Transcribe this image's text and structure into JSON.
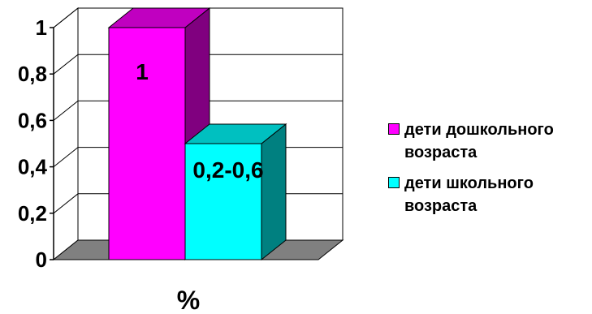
{
  "chart_data": {
    "type": "bar",
    "style": "3d",
    "categories": [
      "%"
    ],
    "xlabel": "%",
    "ylim": [
      0,
      1
    ],
    "yticks": [
      "0",
      "0,2",
      "0,4",
      "0,6",
      "0,8",
      "1"
    ],
    "grid": true,
    "legend_position": "right",
    "series": [
      {
        "name": "дети дошкольного возраста",
        "value": 1,
        "label": "1",
        "color": "#ff00ff",
        "side_color": "#80007f",
        "top_color": "#c000c0"
      },
      {
        "name": "дети школьного возраста",
        "value": 0.5,
        "label": "0,2-0,6",
        "color": "#00ffff",
        "side_color": "#008080",
        "top_color": "#00c0c0"
      }
    ],
    "floor_color": "#808080",
    "wall_color": "#ffffff"
  }
}
